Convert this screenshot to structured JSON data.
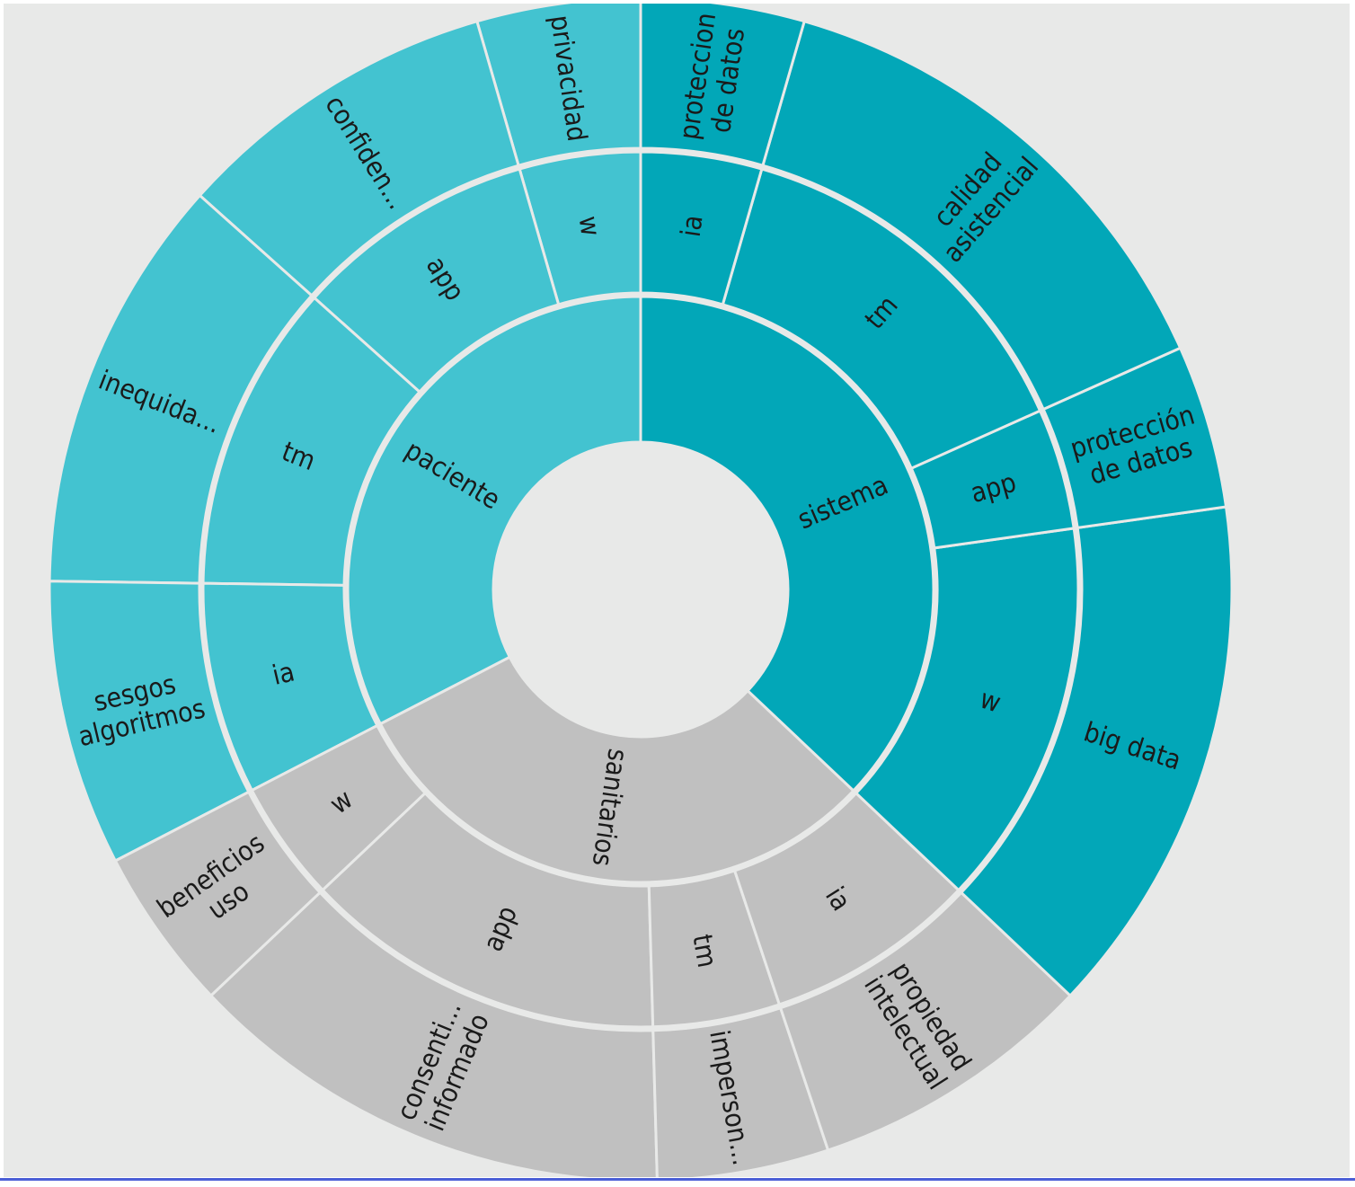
{
  "chart_data": {
    "type": "sunburst",
    "title": "",
    "colors": {
      "paciente": "#43c3d0",
      "sistema": "#02a7b8",
      "sanitarios": "#c0c0c0",
      "divider": "#e8e9e8",
      "background": "#e8e9e8",
      "text": "#1a1a1a"
    },
    "root": [
      {
        "name": "paciente",
        "children": [
          {
            "name": "w",
            "children": [
              {
                "name": "privacidad",
                "lines": [
                  "privacidad"
                ],
                "value": 1
              }
            ]
          },
          {
            "name": "app",
            "children": [
              {
                "name": "confiden...",
                "lines": [
                  "confiden..."
                ],
                "value": 2
              }
            ]
          },
          {
            "name": "tm",
            "children": [
              {
                "name": "inequida...",
                "lines": [
                  "inequida..."
                ],
                "value": 2.55
              }
            ]
          },
          {
            "name": "ia",
            "children": [
              {
                "name": "sesgos algoritmos",
                "lines": [
                  "sesgos",
                  "algoritmos"
                ],
                "value": 1.75
              }
            ]
          }
        ]
      },
      {
        "name": "sanitarios",
        "children": [
          {
            "name": "w",
            "children": [
              {
                "name": "beneficios uso",
                "lines": [
                  "beneficios",
                  "uso"
                ],
                "value": 1
              }
            ]
          },
          {
            "name": "app",
            "children": [
              {
                "name": "consenti... informado",
                "lines": [
                  "consenti...",
                  "informado"
                ],
                "value": 3
              }
            ]
          },
          {
            "name": "tm",
            "children": [
              {
                "name": "imperson...",
                "lines": [
                  "imperson..."
                ],
                "value": 1.05
              }
            ]
          },
          {
            "name": "ia",
            "children": [
              {
                "name": "propiedad intelectual",
                "lines": [
                  "propiedad",
                  "intelectual"
                ],
                "value": 1.75
              }
            ]
          }
        ]
      },
      {
        "name": "sistema",
        "children": [
          {
            "name": "w",
            "children": [
              {
                "name": "big data",
                "lines": [
                  "big data"
                ],
                "value": 3.2
              }
            ]
          },
          {
            "name": "app",
            "children": [
              {
                "name": "protección de datos",
                "lines": [
                  "protección",
                  "de datos"
                ],
                "value": 1
              }
            ]
          },
          {
            "name": "tm",
            "children": [
              {
                "name": "calidad asistencial",
                "lines": [
                  "calidad",
                  "asistencial"
                ],
                "value": 3.1
              }
            ]
          },
          {
            "name": "ia",
            "children": [
              {
                "name": "proteccion de datos",
                "lines": [
                  "proteccion",
                  "de datos"
                ],
                "value": 1
              }
            ]
          }
        ]
      }
    ]
  }
}
